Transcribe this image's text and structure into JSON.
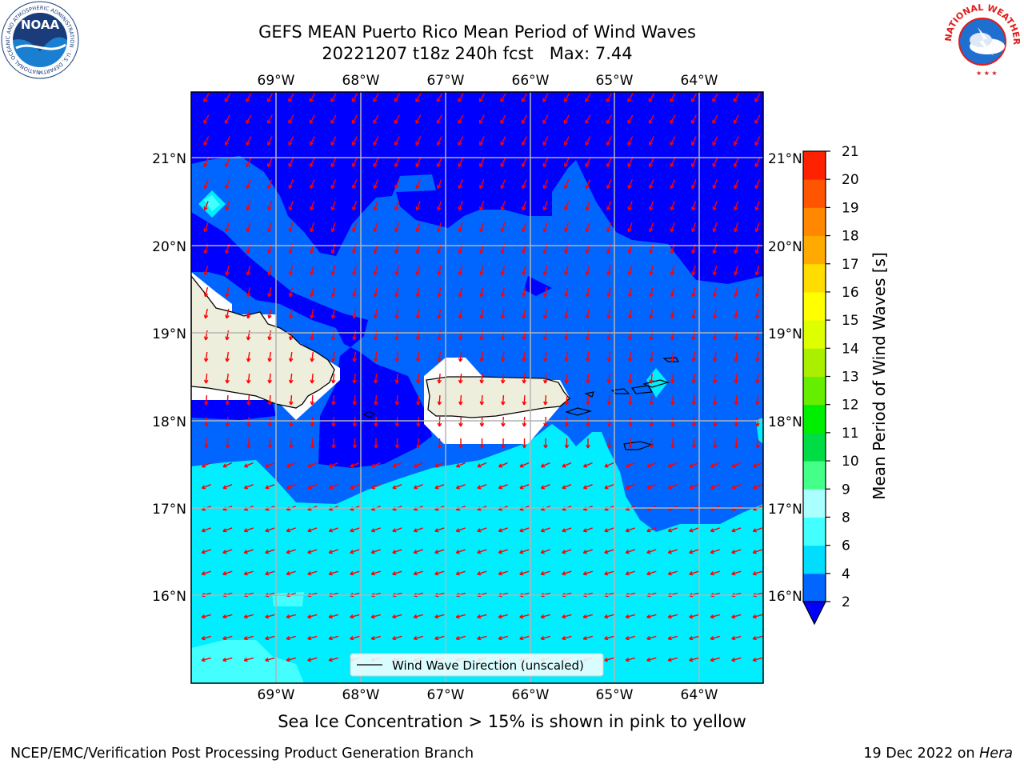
{
  "header": {
    "title_line1": "GEFS MEAN Puerto Rico Mean Period of Wind Waves",
    "title_line2": "20221207 t18z 240h fcst   Max: 7.44"
  },
  "logos": {
    "left": {
      "text": "NOAA",
      "ring_text": "NATIONAL OCEANIC AND ATMOSPHERIC ADMINISTRATION · U.S. DEPARTMENT OF COMMERCE"
    },
    "right": {
      "ring_text": "NATIONAL WEATHER SERVICE"
    }
  },
  "map": {
    "lon_labels": [
      "69°W",
      "68°W",
      "67°W",
      "66°W",
      "65°W",
      "64°W"
    ],
    "lat_labels": [
      "21°N",
      "20°N",
      "19°N",
      "18°N",
      "17°N",
      "16°N"
    ],
    "legend_label": "Wind Wave Direction (unscaled)",
    "arrow_color": "#ff0000",
    "land_color": "#eeeedd"
  },
  "colorbar": {
    "label": "Mean Period of Wind Waves [s]",
    "ticks": [
      "2",
      "4",
      "6",
      "8",
      "9",
      "10",
      "11",
      "12",
      "13",
      "14",
      "15",
      "16",
      "17",
      "18",
      "19",
      "20",
      "21"
    ],
    "colors": [
      "#0066ff",
      "#00ddff",
      "#44ffff",
      "#aaffff",
      "#44ff88",
      "#00dd44",
      "#00ee00",
      "#66ee00",
      "#aaee00",
      "#ddff00",
      "#ffff00",
      "#ffdd00",
      "#ffaa00",
      "#ff8800",
      "#ff5500",
      "#ff2200",
      "#ff0000"
    ],
    "under_color": "#0000ff"
  },
  "caption": "Sea Ice Concentration > 15% is shown in pink to yellow",
  "footer": {
    "left": "NCEP/EMC/Verification Post Processing Product Generation Branch",
    "right_date": "19 Dec 2022 on ",
    "right_host": "Hera"
  }
}
